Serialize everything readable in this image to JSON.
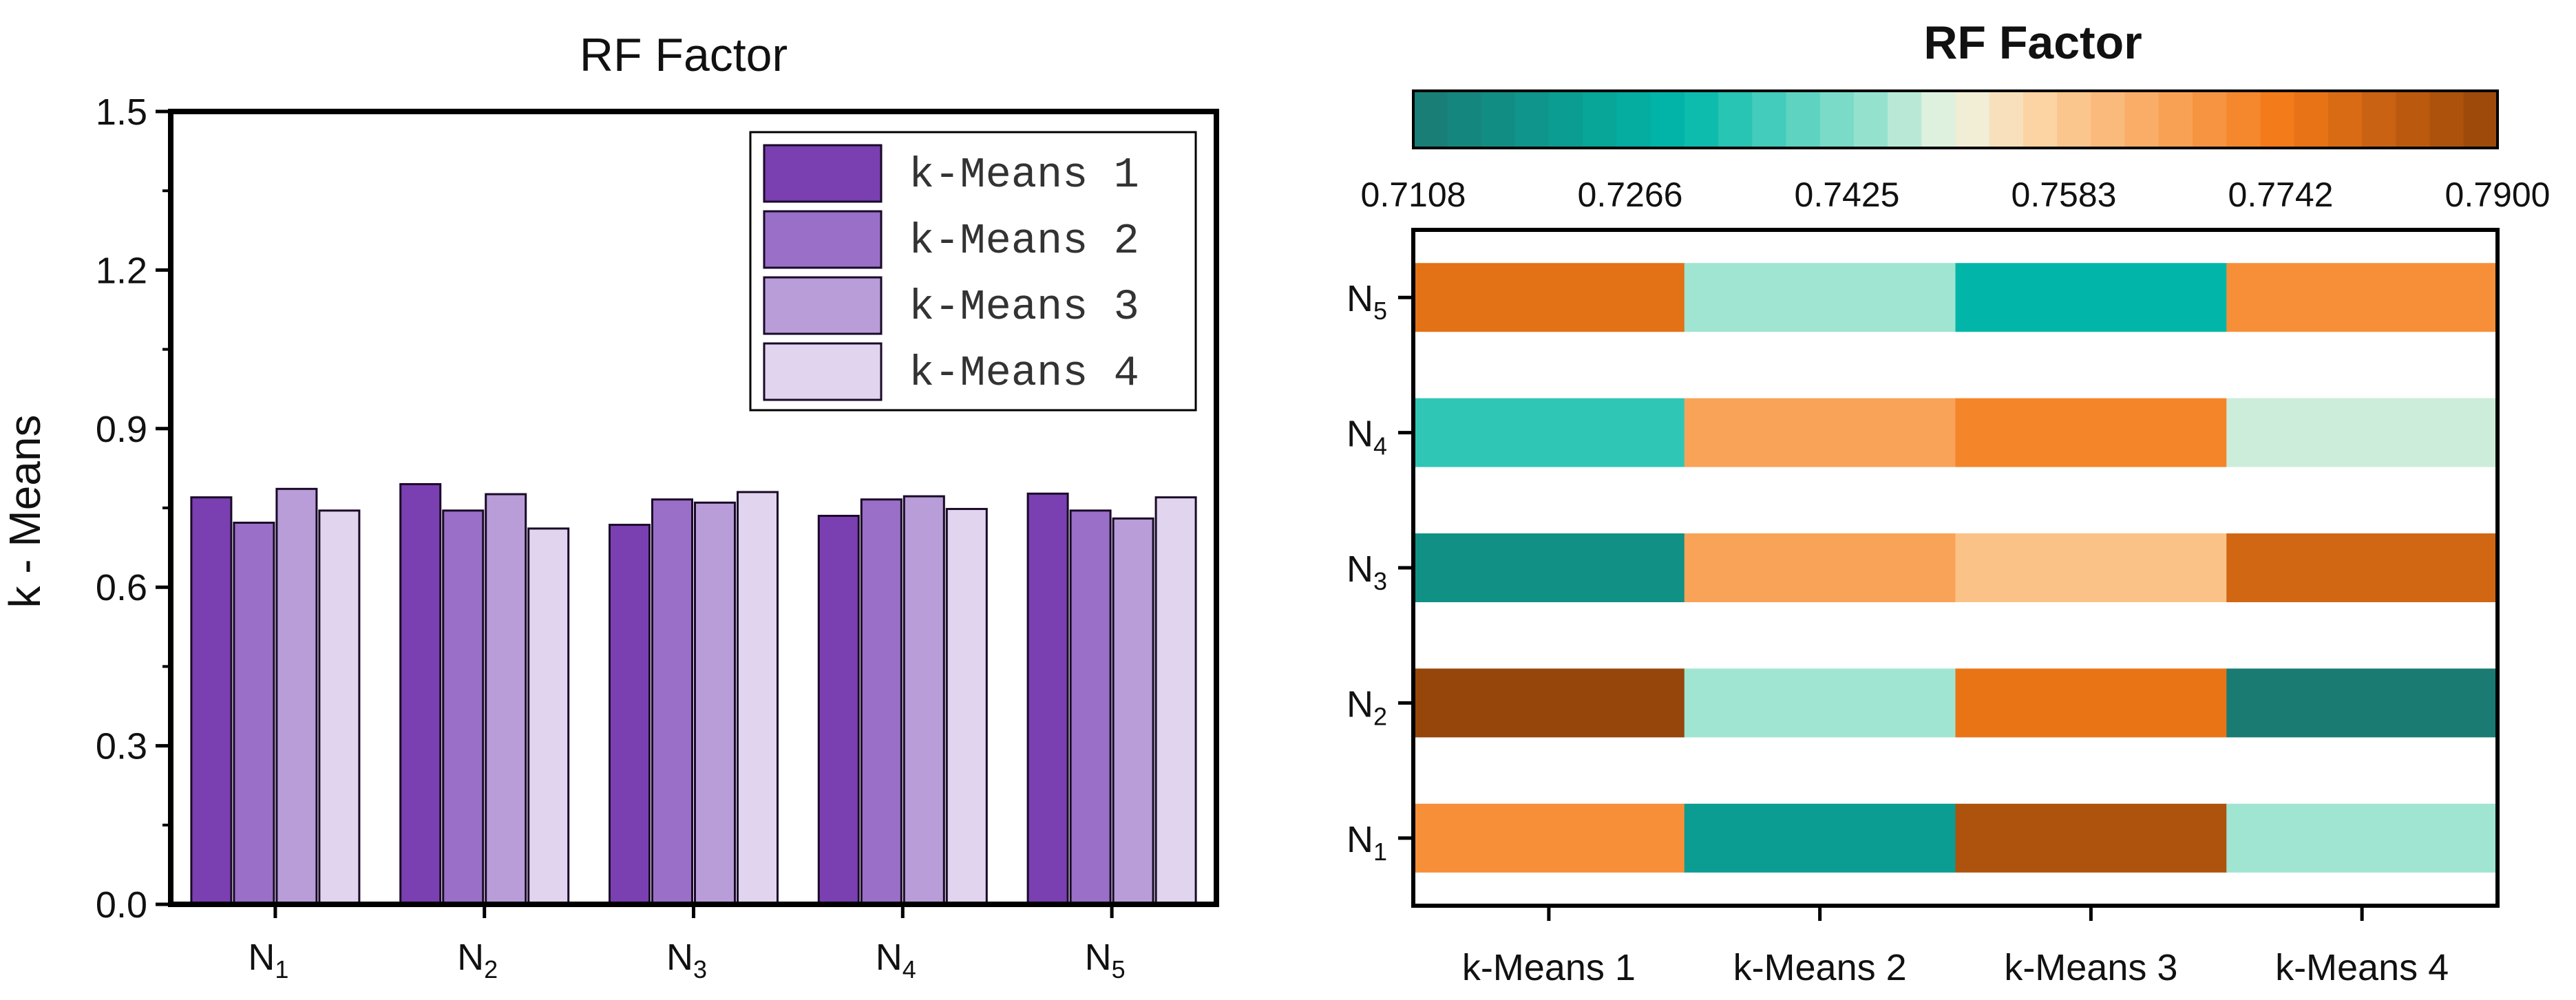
{
  "chart_data": [
    {
      "type": "bar",
      "title": "RF Factor",
      "xlabel": "",
      "ylabel": "k - Means",
      "ylim": [
        0,
        1.5
      ],
      "yticks": [
        "0.0",
        "0.3",
        "0.6",
        "0.9",
        "1.2",
        "1.5"
      ],
      "categories": [
        {
          "base": "N",
          "sub": "1"
        },
        {
          "base": "N",
          "sub": "2"
        },
        {
          "base": "N",
          "sub": "3"
        },
        {
          "base": "N",
          "sub": "4"
        },
        {
          "base": "N",
          "sub": "5"
        }
      ],
      "legend_position": "top-right",
      "series": [
        {
          "name": "k-Means 1",
          "color": "#7a3fb0",
          "values": [
            0.77,
            0.795,
            0.718,
            0.735,
            0.777
          ]
        },
        {
          "name": "k-Means 2",
          "color": "#9a6fc8",
          "values": [
            0.722,
            0.745,
            0.766,
            0.766,
            0.745
          ]
        },
        {
          "name": "k-Means 3",
          "color": "#b89dd8",
          "values": [
            0.786,
            0.776,
            0.76,
            0.772,
            0.73
          ]
        },
        {
          "name": "k-Means 4",
          "color": "#e0d4ee",
          "values": [
            0.745,
            0.711,
            0.78,
            0.748,
            0.77
          ]
        }
      ]
    },
    {
      "type": "heatmap",
      "title": "RF Factor",
      "colorbar": {
        "min": 0.7108,
        "max": 0.79,
        "tick_labels": [
          "0.7108",
          "0.7266",
          "0.7425",
          "0.7583",
          "0.7742",
          "0.7900"
        ],
        "position": "top"
      },
      "columns": [
        "k-Means 1",
        "k-Means 2",
        "k-Means 3",
        "k-Means 4"
      ],
      "rows": [
        {
          "base": "N",
          "sub": "5",
          "values": [
            0.777,
            0.745,
            0.73,
            0.77
          ]
        },
        {
          "base": "N",
          "sub": "4",
          "values": [
            0.735,
            0.766,
            0.772,
            0.748
          ]
        },
        {
          "base": "N",
          "sub": "3",
          "values": [
            0.718,
            0.766,
            0.76,
            0.78
          ]
        },
        {
          "base": "N",
          "sub": "2",
          "values": [
            0.795,
            0.745,
            0.776,
            0.711
          ]
        },
        {
          "base": "N",
          "sub": "1",
          "values": [
            0.77,
            0.722,
            0.786,
            0.745
          ]
        }
      ]
    }
  ]
}
